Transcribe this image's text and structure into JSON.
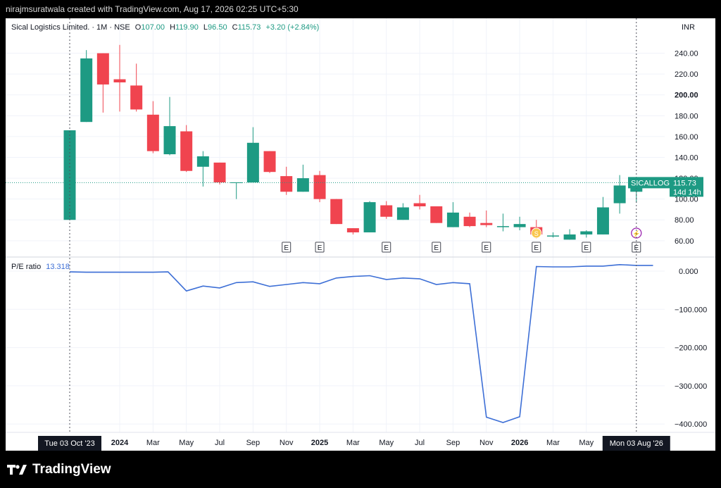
{
  "header": {
    "text": "nirajmsuratwala created with TradingView.com, Aug 17, 2026 02:25 UTC+5:30"
  },
  "footer": {
    "brand": "TradingView"
  },
  "chart_data": {
    "type": "candlestick",
    "legend": {
      "symbol": "Sical Logistics Limited. · 1M · NSE",
      "o_label": "O",
      "o": "107.00",
      "h_label": "H",
      "h": "119.90",
      "l_label": "L",
      "l": "96.50",
      "c_label": "C",
      "c": "115.73",
      "change": "+3.20 (+2.84%)"
    },
    "currency": "INR",
    "price_axis": {
      "range": [
        45,
        260
      ],
      "ticks": [
        "60.00",
        "80.00",
        "100.00",
        "120.00",
        "140.00",
        "160.00",
        "180.00",
        "200.00",
        "220.00",
        "240.00"
      ],
      "bold_tick": "200.00"
    },
    "last_price": {
      "symbol": "SICALLOG",
      "value": "115.73",
      "countdown": "14d 14h",
      "price": 115.73
    },
    "candles": [
      {
        "o": 80,
        "h": 166,
        "l": 80,
        "c": 166
      },
      {
        "o": 174,
        "h": 243,
        "l": 174,
        "c": 235
      },
      {
        "o": 240,
        "h": 240,
        "l": 183,
        "c": 210
      },
      {
        "o": 215,
        "h": 248,
        "l": 184,
        "c": 212
      },
      {
        "o": 209,
        "h": 230,
        "l": 184,
        "c": 186
      },
      {
        "o": 181,
        "h": 194,
        "l": 144,
        "c": 146
      },
      {
        "o": 143,
        "h": 198,
        "l": 142,
        "c": 170
      },
      {
        "o": 165,
        "h": 171,
        "l": 126,
        "c": 127
      },
      {
        "o": 131,
        "h": 146,
        "l": 112,
        "c": 141
      },
      {
        "o": 135,
        "h": 135,
        "l": 114,
        "c": 116
      },
      {
        "o": 116,
        "h": 116,
        "l": 100,
        "c": 116
      },
      {
        "o": 116,
        "h": 169,
        "l": 116,
        "c": 154
      },
      {
        "o": 146,
        "h": 146,
        "l": 125,
        "c": 126
      },
      {
        "o": 122,
        "h": 131,
        "l": 104,
        "c": 107
      },
      {
        "o": 107,
        "h": 133,
        "l": 107,
        "c": 120
      },
      {
        "o": 123,
        "h": 127,
        "l": 97,
        "c": 100
      },
      {
        "o": 100,
        "h": 100,
        "l": 76,
        "c": 76
      },
      {
        "o": 72,
        "h": 72,
        "l": 66,
        "c": 68
      },
      {
        "o": 68,
        "h": 98,
        "l": 68,
        "c": 97
      },
      {
        "o": 94,
        "h": 98,
        "l": 81,
        "c": 83
      },
      {
        "o": 80,
        "h": 96,
        "l": 80,
        "c": 92
      },
      {
        "o": 96,
        "h": 104,
        "l": 90,
        "c": 93
      },
      {
        "o": 93,
        "h": 93,
        "l": 77,
        "c": 77
      },
      {
        "o": 73,
        "h": 97,
        "l": 73,
        "c": 87
      },
      {
        "o": 83,
        "h": 87,
        "l": 73,
        "c": 74
      },
      {
        "o": 77,
        "h": 89,
        "l": 73,
        "c": 75
      },
      {
        "o": 73,
        "h": 86,
        "l": 69,
        "c": 74
      },
      {
        "o": 73,
        "h": 83,
        "l": 70,
        "c": 76
      },
      {
        "o": 73,
        "h": 80,
        "l": 62,
        "c": 66
      },
      {
        "o": 64,
        "h": 68,
        "l": 63,
        "c": 65
      },
      {
        "o": 61,
        "h": 71,
        "l": 61,
        "c": 66
      },
      {
        "o": 66,
        "h": 70,
        "l": 63,
        "c": 69
      },
      {
        "o": 66,
        "h": 102,
        "l": 66,
        "c": 92
      },
      {
        "o": 96,
        "h": 123,
        "l": 86,
        "c": 113
      },
      {
        "o": 107,
        "h": 119.9,
        "l": 96.5,
        "c": 115.73
      }
    ],
    "event_markers": [
      {
        "i": 13,
        "label": "E"
      },
      {
        "i": 15,
        "label": "E"
      },
      {
        "i": 19,
        "label": "E"
      },
      {
        "i": 22,
        "label": "E"
      },
      {
        "i": 25,
        "label": "E"
      },
      {
        "i": 28,
        "label": "E"
      },
      {
        "i": 31,
        "label": "E"
      },
      {
        "i": 34,
        "label": "E"
      }
    ],
    "split_marker": {
      "i": 28,
      "label": "S"
    },
    "flash_marker": {
      "i": 34,
      "label": "⚡"
    },
    "pe": {
      "label": "P/E ratio",
      "value": "13.318",
      "range": [
        -420,
        35
      ],
      "ticks": [
        "0.000",
        "−100.000",
        "−200.000",
        "−300.000",
        "−400.000"
      ],
      "tick_values": [
        0,
        -100,
        -200,
        -300,
        -400
      ],
      "points": [
        [
          0,
          -2
        ],
        [
          1,
          -3
        ],
        [
          2,
          -3
        ],
        [
          3,
          -3
        ],
        [
          4,
          -3
        ],
        [
          5,
          -3
        ],
        [
          5.9,
          -2
        ],
        [
          7,
          -52
        ],
        [
          8,
          -39
        ],
        [
          9,
          -44
        ],
        [
          10,
          -30
        ],
        [
          11,
          -28
        ],
        [
          12,
          -40
        ],
        [
          13,
          -35
        ],
        [
          14,
          -30
        ],
        [
          15,
          -33
        ],
        [
          16,
          -18
        ],
        [
          17,
          -14
        ],
        [
          18,
          -12
        ],
        [
          19,
          -22
        ],
        [
          20,
          -18
        ],
        [
          21,
          -20
        ],
        [
          22,
          -35
        ],
        [
          23,
          -30
        ],
        [
          24,
          -33
        ],
        [
          25,
          -382
        ],
        [
          26,
          -396
        ],
        [
          27,
          -381
        ],
        [
          28,
          12
        ],
        [
          29,
          11
        ],
        [
          30,
          11
        ],
        [
          31,
          13
        ],
        [
          32,
          13
        ],
        [
          33,
          17
        ],
        [
          34,
          15
        ],
        [
          35,
          15
        ]
      ]
    },
    "time_axis": {
      "labels": [
        {
          "i": 3,
          "t": "2024",
          "bold": true
        },
        {
          "i": 5,
          "t": "Mar"
        },
        {
          "i": 7,
          "t": "May"
        },
        {
          "i": 9,
          "t": "Jul"
        },
        {
          "i": 11,
          "t": "Sep"
        },
        {
          "i": 13,
          "t": "Nov"
        },
        {
          "i": 15,
          "t": "2025",
          "bold": true
        },
        {
          "i": 17,
          "t": "Mar"
        },
        {
          "i": 19,
          "t": "May"
        },
        {
          "i": 21,
          "t": "Jul"
        },
        {
          "i": 23,
          "t": "Sep"
        },
        {
          "i": 25,
          "t": "Nov"
        },
        {
          "i": 27,
          "t": "2026",
          "bold": true
        },
        {
          "i": 29,
          "t": "Mar"
        },
        {
          "i": 31,
          "t": "May"
        }
      ],
      "start_label": "Tue 03 Oct '23",
      "end_label": "Mon 03 Aug '26"
    },
    "colors": {
      "up": "#1d9a83",
      "down": "#f0444f",
      "pe_line": "#3d6fd6",
      "text": "#131722",
      "axis_text": "#131722"
    }
  }
}
